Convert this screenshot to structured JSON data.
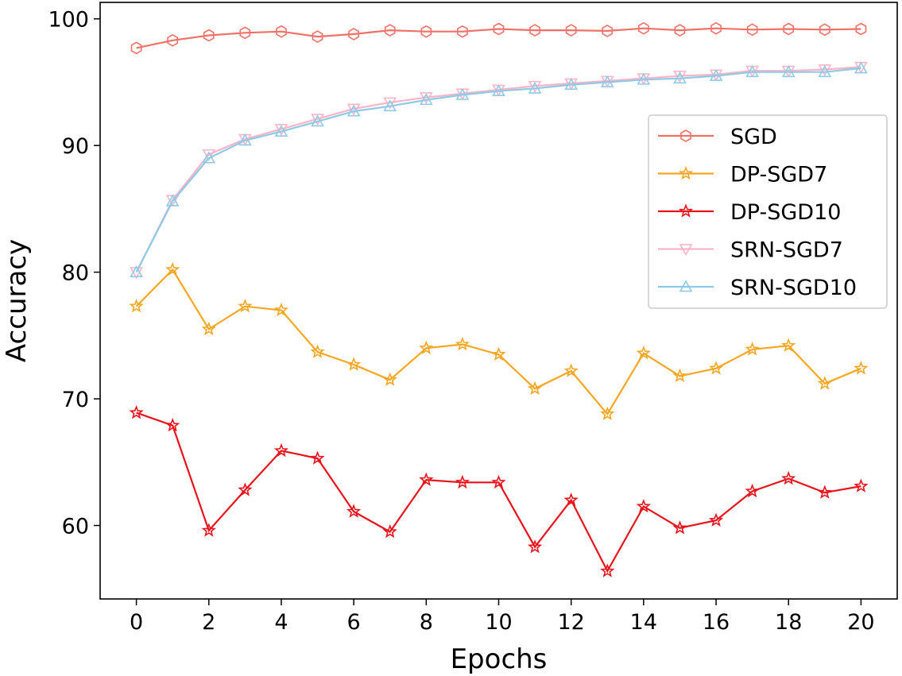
{
  "chart_data": {
    "type": "line",
    "title": "",
    "xlabel": "Epochs",
    "ylabel": "Accuracy",
    "xlim": [
      -1,
      21
    ],
    "ylim": [
      54.2,
      101.3
    ],
    "xticks": [
      0,
      2,
      4,
      6,
      8,
      10,
      12,
      14,
      16,
      18,
      20
    ],
    "yticks": [
      60,
      70,
      80,
      90,
      100
    ],
    "grid": false,
    "legend_position": "right",
    "x": [
      0,
      1,
      2,
      3,
      4,
      5,
      6,
      7,
      8,
      9,
      10,
      11,
      12,
      13,
      14,
      15,
      16,
      17,
      18,
      19,
      20
    ],
    "series": [
      {
        "name": "SGD",
        "color": "#f07167",
        "marker": "hexagon",
        "values": [
          97.7,
          98.3,
          98.7,
          98.9,
          99.0,
          98.6,
          98.8,
          99.1,
          99.0,
          99.0,
          99.2,
          99.1,
          99.1,
          99.05,
          99.25,
          99.1,
          99.25,
          99.15,
          99.2,
          99.15,
          99.2
        ]
      },
      {
        "name": "DP-SGD7",
        "color": "#f5a623",
        "marker": "star",
        "values": [
          77.3,
          80.2,
          75.5,
          77.3,
          77.0,
          73.7,
          72.7,
          71.5,
          74.0,
          74.3,
          73.5,
          70.8,
          72.2,
          68.8,
          73.6,
          71.8,
          72.4,
          73.9,
          74.2,
          71.2,
          72.4
        ]
      },
      {
        "name": "DP-SGD10",
        "color": "#e8141c",
        "marker": "star",
        "values": [
          68.9,
          67.9,
          59.6,
          62.8,
          65.9,
          65.3,
          61.1,
          59.5,
          63.6,
          63.4,
          63.4,
          58.3,
          62.0,
          56.4,
          61.5,
          59.8,
          60.4,
          62.7,
          63.7,
          62.6,
          63.1
        ]
      },
      {
        "name": "SRN-SGD7",
        "color": "#ffb3c6",
        "marker": "triangle-down",
        "values": [
          80.0,
          85.7,
          89.3,
          90.5,
          91.3,
          92.1,
          92.9,
          93.4,
          93.8,
          94.1,
          94.4,
          94.7,
          94.9,
          95.1,
          95.3,
          95.5,
          95.6,
          95.9,
          95.9,
          96.0,
          96.2
        ]
      },
      {
        "name": "SRN-SGD10",
        "color": "#8ecae6",
        "marker": "triangle-up",
        "values": [
          80.0,
          85.6,
          89.0,
          90.4,
          91.1,
          91.9,
          92.7,
          93.1,
          93.6,
          94.0,
          94.3,
          94.5,
          94.8,
          95.0,
          95.2,
          95.3,
          95.5,
          95.8,
          95.8,
          95.8,
          96.1
        ]
      }
    ]
  }
}
